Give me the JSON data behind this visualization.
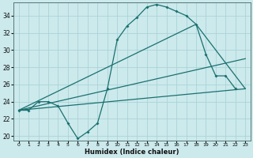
{
  "xlabel": "Humidex (Indice chaleur)",
  "background_color": "#cce9ec",
  "grid_color": "#aad4d8",
  "line_color": "#1a7070",
  "xlim": [
    -0.5,
    23.5
  ],
  "ylim": [
    19.5,
    35.5
  ],
  "yticks": [
    20,
    22,
    24,
    26,
    28,
    30,
    32,
    34
  ],
  "xticks": [
    0,
    1,
    2,
    3,
    4,
    5,
    6,
    7,
    8,
    9,
    10,
    11,
    12,
    13,
    14,
    15,
    16,
    17,
    18,
    19,
    20,
    21,
    22,
    23
  ],
  "curve_main_x": [
    0,
    1,
    2,
    3,
    4,
    5,
    6,
    7,
    8,
    9,
    10,
    11,
    12,
    13,
    14,
    15,
    16,
    17,
    18,
    19,
    20,
    21,
    22
  ],
  "curve_main_y": [
    23.0,
    23.0,
    24.0,
    24.0,
    23.5,
    21.5,
    19.7,
    20.5,
    21.5,
    25.5,
    31.2,
    32.8,
    33.8,
    35.0,
    35.3,
    35.0,
    34.5,
    34.0,
    33.0,
    29.5,
    27.0,
    27.0,
    25.5
  ],
  "line1_x": [
    0,
    18,
    23
  ],
  "line1_y": [
    23.0,
    33.0,
    25.5
  ],
  "line2_x": [
    0,
    23
  ],
  "line2_y": [
    23.0,
    29.0
  ],
  "line3_x": [
    0,
    23
  ],
  "line3_y": [
    23.0,
    25.5
  ]
}
